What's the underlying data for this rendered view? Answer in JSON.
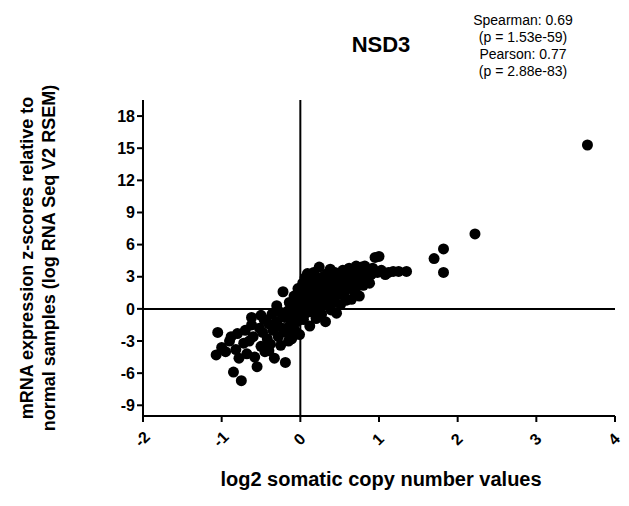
{
  "chart_data": {
    "type": "scatter",
    "title": "NSD3",
    "x_label": "log2 somatic copy number values",
    "y_label": [
      "mRNA expression z-scores relative to",
      "normal samples (log RNA Seq V2 RSEM)"
    ],
    "annotations": [
      "Spearman: 0.69",
      "(p = 1.53e-59)",
      "Pearson: 0.77",
      "(p = 2.88e-83)"
    ],
    "color": "#000000",
    "marker": "circle",
    "xlim": [
      -2,
      4
    ],
    "ylim": [
      -10,
      19.5
    ],
    "xticks": [
      -2,
      -1,
      0,
      1,
      2,
      3,
      4
    ],
    "yticks": [
      -9,
      -6,
      -3,
      0,
      3,
      6,
      9,
      12,
      15,
      18
    ],
    "x": [
      -1.07,
      -1.05,
      -1.0,
      -0.95,
      -0.9,
      -0.88,
      -0.85,
      -0.82,
      -0.8,
      -0.78,
      -0.75,
      -0.72,
      -0.7,
      -0.68,
      -0.65,
      -0.62,
      -0.6,
      -0.58,
      -0.55,
      -0.52,
      -0.5,
      -0.48,
      -0.46,
      -0.45,
      -0.42,
      -0.4,
      -0.38,
      -0.36,
      -0.35,
      -0.33,
      -0.3,
      -0.28,
      -0.26,
      -0.25,
      -0.23,
      -0.22,
      -0.2,
      -0.19,
      -0.18,
      -0.16,
      -0.15,
      -0.14,
      -0.12,
      -0.11,
      -0.1,
      -0.09,
      -0.08,
      -0.07,
      -0.06,
      -0.05,
      -0.04,
      -0.03,
      -0.02,
      -0.01,
      -0.01,
      -0.3,
      -0.5,
      -0.62,
      -0.4,
      -0.15,
      0.0,
      0.01,
      0.02,
      0.03,
      0.04,
      0.05,
      0.06,
      0.07,
      0.08,
      0.09,
      0.1,
      0.11,
      0.12,
      0.13,
      0.14,
      0.15,
      0.16,
      0.17,
      0.18,
      0.19,
      0.2,
      0.21,
      0.22,
      0.23,
      0.24,
      0.25,
      0.26,
      0.27,
      0.28,
      0.29,
      0.3,
      0.31,
      0.32,
      0.33,
      0.34,
      0.35,
      0.36,
      0.37,
      0.38,
      0.39,
      0.4,
      0.41,
      0.42,
      0.43,
      0.44,
      0.45,
      0.46,
      0.47,
      0.48,
      0.5,
      0.51,
      0.52,
      0.54,
      0.55,
      0.56,
      0.58,
      0.6,
      0.61,
      0.62,
      0.64,
      0.65,
      0.66,
      0.68,
      0.7,
      0.71,
      0.72,
      0.74,
      0.75,
      0.77,
      0.78,
      0.8,
      0.81,
      0.82,
      0.84,
      0.86,
      0.88,
      0.9,
      0.92,
      0.95,
      0.98,
      1.0,
      1.03,
      1.08,
      1.12,
      1.18,
      1.25,
      1.35,
      1.7,
      1.82,
      1.82,
      2.22,
      3.65
    ],
    "values": [
      -4.3,
      -2.2,
      -3.6,
      -4.0,
      -3.0,
      -2.6,
      -5.9,
      -3.8,
      -2.3,
      -4.6,
      -6.7,
      -3.2,
      -2.0,
      -4.2,
      -3.0,
      -1.5,
      -2.6,
      -4.5,
      -5.4,
      -1.8,
      -3.5,
      -2.2,
      -1.0,
      -4.0,
      -2.8,
      -1.4,
      -3.3,
      -0.5,
      -2.0,
      -4.6,
      -1.2,
      -2.6,
      -0.3,
      -3.4,
      -1.8,
      1.6,
      -0.8,
      -5.0,
      -2.2,
      -0.2,
      -3.0,
      0.6,
      -1.4,
      -2.8,
      0.2,
      -0.9,
      1.2,
      -2.0,
      -0.4,
      0.8,
      -1.2,
      1.9,
      -0.6,
      0.4,
      -2.4,
      0.3,
      -0.6,
      -0.8,
      -3.9,
      -1.7,
      0.6,
      1.6,
      -0.2,
      2.4,
      -1.0,
      0.9,
      2.9,
      -0.4,
      1.3,
      3.3,
      0.3,
      2.0,
      -1.6,
      1.0,
      2.6,
      -0.3,
      1.7,
      3.4,
      0.6,
      2.2,
      -0.9,
      1.4,
      2.9,
      0.1,
      3.9,
      1.1,
      2.4,
      -0.5,
      1.8,
      3.0,
      0.7,
      2.1,
      -1.2,
      1.4,
      3.3,
      0.3,
      2.6,
      1.0,
      3.7,
      -0.1,
      1.9,
      2.9,
      0.6,
      2.3,
      3.4,
      1.2,
      -0.4,
      2.7,
      1.6,
      3.1,
      0.4,
      2.2,
      3.6,
      1.3,
      2.6,
      0.8,
      3.0,
      1.9,
      3.8,
      2.4,
      0.9,
      3.3,
      1.7,
      2.8,
      4.0,
      2.1,
      3.4,
      1.2,
      2.6,
      3.9,
      2.2,
      3.2,
      4.0,
      2.8,
      3.6,
      2.4,
      3.2,
      3.8,
      4.8,
      3.4,
      4.9,
      3.6,
      3.2,
      3.4,
      3.5,
      3.5,
      3.5,
      4.7,
      5.6,
      3.4,
      7.0,
      15.3
    ]
  }
}
